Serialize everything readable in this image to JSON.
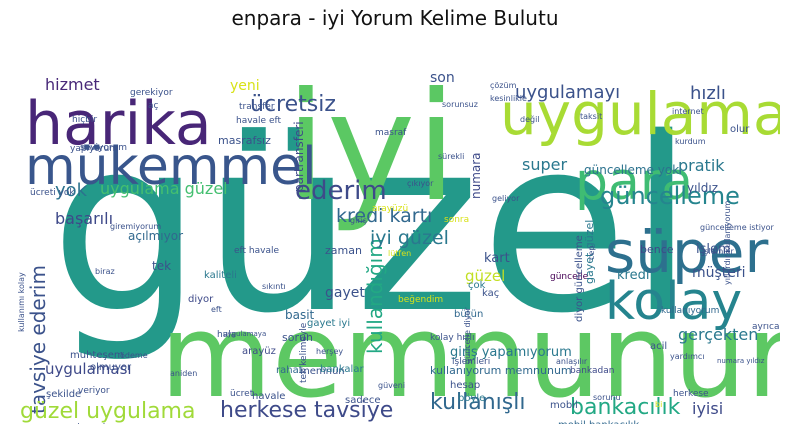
{
  "chart_data": {
    "type": "wordcloud",
    "title": "enpara - iyi Yorum Kelime Bulutu",
    "colormap": "viridis",
    "background": "#ffffff",
    "words": [
      {
        "text": "güzel",
        "weight": 1.0,
        "color": "#23998a",
        "rotate": 0
      },
      {
        "text": "iyi",
        "weight": 0.95,
        "color": "#5bc863",
        "rotate": 0
      },
      {
        "text": "memnunum",
        "weight": 0.82,
        "color": "#5dc863",
        "rotate": 0
      },
      {
        "text": "harika",
        "weight": 0.5,
        "color": "#482677",
        "rotate": 0
      },
      {
        "text": "uygulama",
        "weight": 0.52,
        "color": "#a8db34",
        "rotate": 0
      },
      {
        "text": "mükemmel",
        "weight": 0.44,
        "color": "#39568c",
        "rotate": 0
      },
      {
        "text": "para",
        "weight": 0.42,
        "color": "#3fbc73",
        "rotate": 0
      },
      {
        "text": "süper",
        "weight": 0.4,
        "color": "#2d708e",
        "rotate": 0
      },
      {
        "text": "kolay",
        "weight": 0.36,
        "color": "#25848e",
        "rotate": 0
      },
      {
        "text": "güncelleme",
        "weight": 0.26,
        "color": "#25858e",
        "rotate": 0
      },
      {
        "text": "ederim",
        "weight": 0.22,
        "color": "#3e4a89",
        "rotate": 0
      },
      {
        "text": "yok",
        "weight": 0.16,
        "color": "#2c728e",
        "rotate": 0
      },
      {
        "text": "tavsiye ederim",
        "weight": 0.18,
        "color": "#3b528b",
        "rotate": 270
      },
      {
        "text": "kullandığım",
        "weight": 0.17,
        "color": "#22a884",
        "rotate": 270
      },
      {
        "text": "ücretsiz",
        "weight": 0.16,
        "color": "#3b528b",
        "rotate": 0
      },
      {
        "text": "kredi kartı",
        "weight": 0.15,
        "color": "#31688e",
        "rotate": 0
      },
      {
        "text": "iyi güzel",
        "weight": 0.14,
        "color": "#2a788e",
        "rotate": 0
      },
      {
        "text": "güzel uygulama",
        "weight": 0.15,
        "color": "#a0da39",
        "rotate": 0
      },
      {
        "text": "herkese tavsiye",
        "weight": 0.15,
        "color": "#3e4a89",
        "rotate": 0
      },
      {
        "text": "kullanışlı",
        "weight": 0.15,
        "color": "#31688e",
        "rotate": 0
      },
      {
        "text": "bankacılık",
        "weight": 0.14,
        "color": "#22a884",
        "rotate": 0
      },
      {
        "text": "hizmet",
        "weight": 0.12,
        "color": "#482878",
        "rotate": 0
      },
      {
        "text": "uygulamayı",
        "weight": 0.12,
        "color": "#3b528b",
        "rotate": 0
      },
      {
        "text": "hızlı",
        "weight": 0.12,
        "color": "#3b528b",
        "rotate": 0
      },
      {
        "text": "super",
        "weight": 0.11,
        "color": "#2a788e",
        "rotate": 0
      },
      {
        "text": "pratik",
        "weight": 0.11,
        "color": "#2a788e",
        "rotate": 0
      },
      {
        "text": "güncelleme yok",
        "weight": 0.1,
        "color": "#2c728e",
        "rotate": 0
      },
      {
        "text": "uygulama güzel",
        "weight": 0.11,
        "color": "#44bf70",
        "rotate": 0
      },
      {
        "text": "başarılı",
        "weight": 0.11,
        "color": "#3e4989",
        "rotate": 0
      },
      {
        "text": "işlem",
        "weight": 0.1,
        "color": "#3b528b",
        "rotate": 0
      },
      {
        "text": "gerçekten",
        "weight": 0.11,
        "color": "#2a788e",
        "rotate": 0
      },
      {
        "text": "müşteri",
        "weight": 0.1,
        "color": "#3b528b",
        "rotate": 0
      },
      {
        "text": "giriş yapamıyorum",
        "weight": 0.09,
        "color": "#2a788e",
        "rotate": 0
      },
      {
        "text": "kullanıyorum memnunum",
        "weight": 0.08,
        "color": "#31688e",
        "rotate": 0
      },
      {
        "text": "iyisi",
        "weight": 0.09,
        "color": "#3e4a89",
        "rotate": 0
      },
      {
        "text": "uygulaması",
        "weight": 0.1,
        "color": "#3e4989",
        "rotate": 0
      },
      {
        "text": "gayet",
        "weight": 0.09,
        "color": "#3b528b",
        "rotate": 0
      },
      {
        "text": "kart",
        "weight": 0.09,
        "color": "#3b528b",
        "rotate": 0
      },
      {
        "text": "yeni",
        "weight": 0.09,
        "color": "#d8e219",
        "rotate": 0
      },
      {
        "text": "son",
        "weight": 0.09,
        "color": "#3b528b",
        "rotate": 0
      },
      {
        "text": "partransferi",
        "weight": 0.07,
        "color": "#3e4a89",
        "rotate": 270
      },
      {
        "text": "numara",
        "weight": 0.08,
        "color": "#3e4a89",
        "rotate": 270
      },
      {
        "text": "masrafsız",
        "weight": 0.07,
        "color": "#3b528b",
        "rotate": 0
      },
      {
        "text": "açılmıyor",
        "weight": 0.07,
        "color": "#31688e",
        "rotate": 0
      },
      {
        "text": "tek",
        "weight": 0.07,
        "color": "#3b528b",
        "rotate": 0
      },
      {
        "text": "kredi",
        "weight": 0.07,
        "color": "#2a788e",
        "rotate": 0
      },
      {
        "text": "bence",
        "weight": 0.07,
        "color": "#3e4a89",
        "rotate": 0
      },
      {
        "text": "güzel",
        "weight": 0.08,
        "color": "#c2df23",
        "rotate": 0
      },
      {
        "text": "basit",
        "weight": 0.07,
        "color": "#31688e",
        "rotate": 0
      },
      {
        "text": "sorun",
        "weight": 0.06,
        "color": "#3b528b",
        "rotate": 0
      },
      {
        "text": "gayet iyi",
        "weight": 0.06,
        "color": "#2a788e",
        "rotate": 0
      },
      {
        "text": "zaman",
        "weight": 0.07,
        "color": "#3b528b",
        "rotate": 0
      },
      {
        "text": "yıldız",
        "weight": 0.07,
        "color": "#3b528b",
        "rotate": 0
      },
      {
        "text": "bütün",
        "weight": 0.06,
        "color": "#31688e",
        "rotate": 0
      },
      {
        "text": "çok",
        "weight": 0.06,
        "color": "#2a788e",
        "rotate": 0
      },
      {
        "text": "kaç",
        "weight": 0.06,
        "color": "#3b528b",
        "rotate": 0
      },
      {
        "text": "güncelle",
        "weight": 0.06,
        "color": "#440154",
        "rotate": 0
      },
      {
        "text": "diyor güncelleme",
        "weight": 0.06,
        "color": "#3b528b",
        "rotate": 270
      },
      {
        "text": "gayet güzel",
        "weight": 0.06,
        "color": "#2a788e",
        "rotate": 270
      },
      {
        "text": "kolay hızlı",
        "weight": 0.05,
        "color": "#3b528b",
        "rotate": 0
      },
      {
        "text": "işlemleri",
        "weight": 0.05,
        "color": "#3b528b",
        "rotate": 0
      },
      {
        "text": "bankadan",
        "weight": 0.05,
        "color": "#3e4a89",
        "rotate": 0
      },
      {
        "text": "kullanıyorum",
        "weight": 0.05,
        "color": "#31688e",
        "rotate": 0
      },
      {
        "text": "acil",
        "weight": 0.05,
        "color": "#3b528b",
        "rotate": 0
      },
      {
        "text": "muhteşem",
        "weight": 0.06,
        "color": "#3b528b",
        "rotate": 0
      },
      {
        "text": "arayüz",
        "weight": 0.05,
        "color": "#3e4a89",
        "rotate": 0
      },
      {
        "text": "memnun",
        "weight": 0.05,
        "color": "#3b528b",
        "rotate": 0
      },
      {
        "text": "bankalar",
        "weight": 0.05,
        "color": "#2a788e",
        "rotate": 0
      },
      {
        "text": "rahat",
        "weight": 0.05,
        "color": "#31688e",
        "rotate": 0
      },
      {
        "text": "hesap",
        "weight": 0.05,
        "color": "#3b528b",
        "rotate": 0
      },
      {
        "text": "böyle",
        "weight": 0.05,
        "color": "#2a788e",
        "rotate": 0
      },
      {
        "text": "mobil",
        "weight": 0.04,
        "color": "#3b528b",
        "rotate": 0
      },
      {
        "text": "sadece",
        "weight": 0.04,
        "color": "#3b528b",
        "rotate": 0
      },
      {
        "text": "herkese",
        "weight": 0.04,
        "color": "#3b528b",
        "rotate": 0
      },
      {
        "text": "mobil bankacılık",
        "weight": 0.04,
        "color": "#31688e",
        "rotate": 0
      },
      {
        "text": "şekilde",
        "weight": 0.05,
        "color": "#3b528b",
        "rotate": 0
      },
      {
        "text": "veriyor",
        "weight": 0.04,
        "color": "#3b528b",
        "rotate": 0
      },
      {
        "text": "kaliteli",
        "weight": 0.05,
        "color": "#2a788e",
        "rotate": 0
      },
      {
        "text": "olmuyor",
        "weight": 0.04,
        "color": "#3b528b",
        "rotate": 0
      },
      {
        "text": "diyor",
        "weight": 0.05,
        "color": "#3e4a89",
        "rotate": 0
      },
      {
        "text": "seviyorum",
        "weight": 0.04,
        "color": "#3b528b",
        "rotate": 0
      },
      {
        "text": "gerekiyor",
        "weight": 0.04,
        "color": "#3b528b",
        "rotate": 0
      },
      {
        "text": "aç",
        "weight": 0.04,
        "color": "#3b528b",
        "rotate": 0
      },
      {
        "text": "transfer",
        "weight": 0.04,
        "color": "#3b528b",
        "rotate": 0
      },
      {
        "text": "havale eft",
        "weight": 0.04,
        "color": "#3b528b",
        "rotate": 0
      },
      {
        "text": "masraf",
        "weight": 0.04,
        "color": "#3b528b",
        "rotate": 0
      },
      {
        "text": "eft havale",
        "weight": 0.04,
        "color": "#3b528b",
        "rotate": 0
      },
      {
        "text": "çözüm",
        "weight": 0.04,
        "color": "#3b528b",
        "rotate": 0
      },
      {
        "text": "kesinlikle",
        "weight": 0.04,
        "color": "#3b528b",
        "rotate": 0
      },
      {
        "text": "sorunsuz",
        "weight": 0.04,
        "color": "#3b528b",
        "rotate": 0
      },
      {
        "text": "değil",
        "weight": 0.04,
        "color": "#3b528b",
        "rotate": 0
      },
      {
        "text": "taksit",
        "weight": 0.04,
        "color": "#3b528b",
        "rotate": 0
      },
      {
        "text": "internet",
        "weight": 0.04,
        "color": "#3b528b",
        "rotate": 0
      },
      {
        "text": "olur",
        "weight": 0.05,
        "color": "#3b528b",
        "rotate": 0
      },
      {
        "text": "hiçbir",
        "weight": 0.04,
        "color": "#3b528b",
        "rotate": 0
      },
      {
        "text": "yapıyorum",
        "weight": 0.04,
        "color": "#3b528b",
        "rotate": 0
      },
      {
        "text": "ücreti yok",
        "weight": 0.04,
        "color": "#3b528b",
        "rotate": 0
      },
      {
        "text": "sürekli",
        "weight": 0.04,
        "color": "#3b528b",
        "rotate": 0
      },
      {
        "text": "çıkıyor",
        "weight": 0.04,
        "color": "#3b528b",
        "rotate": 0
      },
      {
        "text": "lütfen",
        "weight": 0.04,
        "color": "#d8e219",
        "rotate": 0
      },
      {
        "text": "geliyor",
        "weight": 0.04,
        "color": "#3b528b",
        "rotate": 0
      },
      {
        "text": "sonra",
        "weight": 0.04,
        "color": "#d8e219",
        "rotate": 0
      },
      {
        "text": "güncelleme istiyor",
        "weight": 0.04,
        "color": "#3b528b",
        "rotate": 0
      },
      {
        "text": "işlemler",
        "weight": 0.04,
        "color": "#3b528b",
        "rotate": 0
      },
      {
        "text": "yıllardır kullanıyorum",
        "weight": 0.04,
        "color": "#3b528b",
        "rotate": 270
      },
      {
        "text": "giriş",
        "weight": 0.04,
        "color": "#3b528b",
        "rotate": 0
      },
      {
        "text": "giremiyorum",
        "weight": 0.04,
        "color": "#3b528b",
        "rotate": 0
      },
      {
        "text": "sıkıntı",
        "weight": 0.04,
        "color": "#3b528b",
        "rotate": 0
      },
      {
        "text": "beğendim",
        "weight": 0.04,
        "color": "#d8e219",
        "rotate": 0
      },
      {
        "text": "yardımcı",
        "weight": 0.04,
        "color": "#3b528b",
        "rotate": 0
      },
      {
        "text": "eft",
        "weight": 0.04,
        "color": "#3b528b",
        "rotate": 0
      },
      {
        "text": "hala",
        "weight": 0.04,
        "color": "#3b528b",
        "rotate": 0
      },
      {
        "text": "herşey",
        "weight": 0.04,
        "color": "#3b528b",
        "rotate": 0
      },
      {
        "text": "ücret",
        "weight": 0.03,
        "color": "#3b528b",
        "rotate": 0
      },
      {
        "text": "güveni",
        "weight": 0.04,
        "color": "#3b528b",
        "rotate": 0
      },
      {
        "text": "numara yıldız",
        "weight": 0.03,
        "color": "#3b528b",
        "rotate": 0
      },
      {
        "text": "ödeme",
        "weight": 0.03,
        "color": "#3b528b",
        "rotate": 0
      },
      {
        "text": "aniden",
        "weight": 0.03,
        "color": "#3b528b",
        "rotate": 0
      },
      {
        "text": "biraz",
        "weight": 0.04,
        "color": "#3b528b",
        "rotate": 0
      },
      {
        "text": "kullanımı kolay",
        "weight": 0.03,
        "color": "#3b528b",
        "rotate": 270
      },
      {
        "text": "uygulamaya",
        "weight": 0.04,
        "color": "#3b528b",
        "rotate": 0
      },
      {
        "text": "anlamadım",
        "weight": 0.03,
        "color": "#3b528b",
        "rotate": 0
      },
      {
        "text": "güvenilir",
        "weight": 0.03,
        "color": "#3b528b",
        "rotate": 0
      },
      {
        "text": "anlaşılır",
        "weight": 0.03,
        "color": "#3b528b",
        "rotate": 0
      },
      {
        "text": "güncelle diyor",
        "weight": 0.03,
        "color": "#3b528b",
        "rotate": 270
      },
      {
        "text": "tek kelimeyle",
        "weight": 0.03,
        "color": "#3b528b",
        "rotate": 270
      },
      {
        "text": "havale",
        "weight": 0.03,
        "color": "#3b528b",
        "rotate": 0
      },
      {
        "text": "arayüzü",
        "weight": 0.03,
        "color": "#d8e219",
        "rotate": 0
      },
      {
        "text": "bi",
        "weight": 0.03,
        "color": "#d8e219",
        "rotate": 0
      },
      {
        "text": "sorunu",
        "weight": 0.03,
        "color": "#3b528b",
        "rotate": 0
      },
      {
        "text": "kurdum",
        "weight": 0.03,
        "color": "#3b528b",
        "rotate": 0
      },
      {
        "text": "ayrıca",
        "weight": 0.03,
        "color": "#3b528b",
        "rotate": 0
      },
      {
        "text": "cep",
        "weight": 0.03,
        "color": "#3b528b",
        "rotate": 270
      }
    ]
  }
}
